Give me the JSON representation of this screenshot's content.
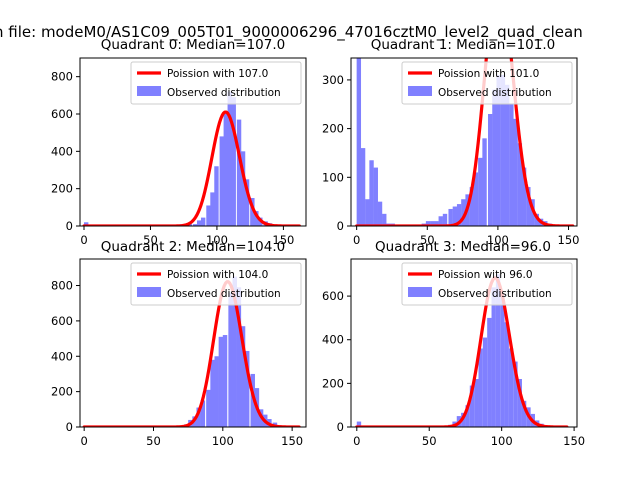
{
  "figure": {
    "suptitle": "n file: modeM0/AS1C09_005T01_9000006296_47016cztM0_level2_quad_clean"
  },
  "colors": {
    "hist_fill": "#8080ff",
    "poisson_line": "#ff0000",
    "axis": "#000000",
    "background": "#ffffff"
  },
  "chart_data": [
    {
      "type": "bar",
      "title": "Quadrant 0: Median=107.0",
      "xlabel": "",
      "ylabel": "",
      "xlim": [
        -3,
        167
      ],
      "ylim": [
        0,
        900
      ],
      "xticks": [
        0,
        50,
        100,
        150
      ],
      "yticks": [
        0,
        200,
        400,
        600,
        800
      ],
      "grid": false,
      "legend_position": "upper right",
      "series": [
        {
          "name": "Poission with 107.0",
          "kind": "line",
          "lambda": 107.0,
          "x_range": [
            0,
            162
          ]
        },
        {
          "name": "Observed distribution",
          "kind": "histogram",
          "bin_width": 3.3,
          "bins": [
            [
              0,
              20
            ],
            [
              63,
              5
            ],
            [
              66,
              5
            ],
            [
              69,
              5
            ],
            [
              72,
              10
            ],
            [
              75,
              10
            ],
            [
              78,
              10
            ],
            [
              82,
              10
            ],
            [
              85,
              30
            ],
            [
              88,
              45
            ],
            [
              92,
              110
            ],
            [
              95,
              180
            ],
            [
              98,
              320
            ],
            [
              102,
              480
            ],
            [
              105,
              610
            ],
            [
              108,
              720
            ],
            [
              111,
              690
            ],
            [
              115,
              570
            ],
            [
              118,
              400
            ],
            [
              121,
              250
            ],
            [
              125,
              150
            ],
            [
              128,
              80
            ],
            [
              131,
              45
            ],
            [
              135,
              25
            ],
            [
              138,
              15
            ],
            [
              141,
              5
            ]
          ]
        }
      ]
    },
    {
      "type": "bar",
      "title": "Quadrant 1: Median=101.0",
      "xlabel": "",
      "ylabel": "",
      "xlim": [
        -4,
        156
      ],
      "ylim": [
        0,
        345
      ],
      "xticks": [
        0,
        50,
        100,
        150
      ],
      "yticks": [
        0,
        100,
        200,
        300
      ],
      "grid": false,
      "legend_position": "upper right",
      "series": [
        {
          "name": "Poission with 101.0",
          "kind": "line",
          "lambda": 101.0,
          "x_range": [
            0,
            153
          ]
        },
        {
          "name": "Observed distribution",
          "kind": "histogram",
          "bin_width": 3.1,
          "bins": [
            [
              0,
              345
            ],
            [
              3,
              160
            ],
            [
              6,
              55
            ],
            [
              9,
              135
            ],
            [
              12,
              120
            ],
            [
              15,
              50
            ],
            [
              18,
              25
            ],
            [
              21,
              5
            ],
            [
              24,
              5
            ],
            [
              28,
              3
            ],
            [
              31,
              3
            ],
            [
              34,
              3
            ],
            [
              37,
              3
            ],
            [
              40,
              3
            ],
            [
              43,
              3
            ],
            [
              46,
              5
            ],
            [
              49,
              10
            ],
            [
              52,
              10
            ],
            [
              55,
              10
            ],
            [
              58,
              20
            ],
            [
              61,
              25
            ],
            [
              65,
              35
            ],
            [
              68,
              40
            ],
            [
              71,
              45
            ],
            [
              74,
              55
            ],
            [
              77,
              65
            ],
            [
              80,
              80
            ],
            [
              83,
              110
            ],
            [
              86,
              140
            ],
            [
              89,
              180
            ],
            [
              93,
              230
            ],
            [
              96,
              280
            ],
            [
              99,
              310
            ],
            [
              102,
              310
            ],
            [
              105,
              290
            ],
            [
              108,
              250
            ],
            [
              111,
              220
            ],
            [
              114,
              170
            ],
            [
              117,
              120
            ],
            [
              120,
              80
            ],
            [
              123,
              55
            ],
            [
              126,
              25
            ],
            [
              129,
              15
            ],
            [
              132,
              10
            ],
            [
              135,
              5
            ]
          ]
        }
      ]
    },
    {
      "type": "bar",
      "title": "Quadrant 2: Median=104.0",
      "xlabel": "",
      "ylabel": "",
      "xlim": [
        -3,
        160
      ],
      "ylim": [
        0,
        950
      ],
      "xticks": [
        0,
        50,
        100,
        150
      ],
      "yticks": [
        0,
        200,
        400,
        600,
        800
      ],
      "grid": false,
      "legend_position": "upper right",
      "series": [
        {
          "name": "Poission with 104.0",
          "kind": "line",
          "lambda": 104.0,
          "x_range": [
            0,
            155
          ]
        },
        {
          "name": "Observed distribution",
          "kind": "histogram",
          "bin_width": 3.2,
          "bins": [
            [
              72,
              15
            ],
            [
              75,
              40
            ],
            [
              78,
              60
            ],
            [
              81,
              110
            ],
            [
              84,
              150
            ],
            [
              88,
              210
            ],
            [
              91,
              380
            ],
            [
              94,
              400
            ],
            [
              97,
              510
            ],
            [
              100,
              520
            ],
            [
              104,
              760
            ],
            [
              107,
              850
            ],
            [
              110,
              790
            ],
            [
              113,
              570
            ],
            [
              116,
              430
            ],
            [
              120,
              300
            ],
            [
              123,
              220
            ],
            [
              126,
              100
            ],
            [
              129,
              70
            ],
            [
              132,
              45
            ],
            [
              136,
              25
            ],
            [
              139,
              10
            ]
          ]
        }
      ]
    },
    {
      "type": "bar",
      "title": "Quadrant 3: Median=96.0",
      "xlabel": "",
      "ylabel": "",
      "xlim": [
        -4,
        152
      ],
      "ylim": [
        0,
        770
      ],
      "xticks": [
        0,
        50,
        100,
        150
      ],
      "yticks": [
        0,
        200,
        400,
        600
      ],
      "grid": false,
      "legend_position": "upper right",
      "series": [
        {
          "name": "Poission with 96.0",
          "kind": "line",
          "lambda": 96.0,
          "x_range": [
            0,
            145
          ]
        },
        {
          "name": "Observed distribution",
          "kind": "histogram",
          "bin_width": 3.0,
          "bins": [
            [
              0,
              25
            ],
            [
              3,
              5
            ],
            [
              60,
              5
            ],
            [
              63,
              10
            ],
            [
              66,
              25
            ],
            [
              69,
              50
            ],
            [
              72,
              65
            ],
            [
              75,
              100
            ],
            [
              78,
              190
            ],
            [
              81,
              220
            ],
            [
              84,
              360
            ],
            [
              87,
              410
            ],
            [
              90,
              500
            ],
            [
              93,
              640
            ],
            [
              96,
              700
            ],
            [
              99,
              610
            ],
            [
              102,
              480
            ],
            [
              105,
              360
            ],
            [
              108,
              300
            ],
            [
              111,
              220
            ],
            [
              114,
              120
            ],
            [
              117,
              90
            ],
            [
              120,
              60
            ],
            [
              123,
              30
            ],
            [
              126,
              15
            ],
            [
              129,
              5
            ]
          ]
        }
      ]
    }
  ]
}
